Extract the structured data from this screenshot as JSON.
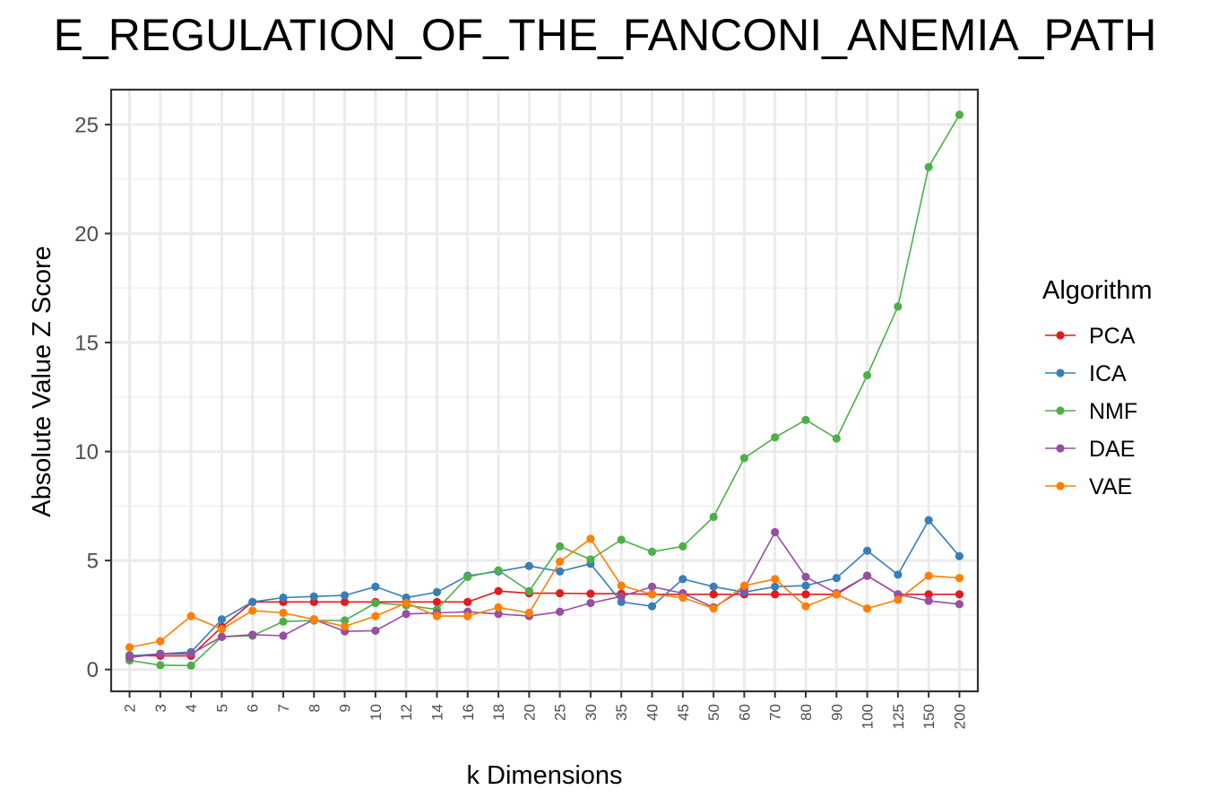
{
  "chart_data": {
    "type": "line",
    "title": "E_REGULATION_OF_THE_FANCONI_ANEMIA_PATH",
    "xlabel": "k Dimensions",
    "ylabel": "Absolute Value Z Score",
    "x_type": "categorical",
    "categories": [
      "2",
      "3",
      "4",
      "5",
      "6",
      "7",
      "8",
      "9",
      "10",
      "12",
      "14",
      "16",
      "18",
      "20",
      "25",
      "30",
      "35",
      "40",
      "45",
      "50",
      "60",
      "70",
      "80",
      "90",
      "100",
      "125",
      "150",
      "200"
    ],
    "ylim": [
      -1,
      26.6
    ],
    "y_ticks": [
      0,
      5,
      10,
      15,
      20,
      25
    ],
    "grid": true,
    "legend": {
      "title": "Algorithm",
      "placement": "right"
    },
    "series": [
      {
        "name": "PCA",
        "color": "#E41A1C",
        "values": [
          0.65,
          0.63,
          0.63,
          1.95,
          3.1,
          3.1,
          3.1,
          3.1,
          3.1,
          3.1,
          3.1,
          3.1,
          3.6,
          3.5,
          3.5,
          3.48,
          3.48,
          3.45,
          3.45,
          3.45,
          3.45,
          3.45,
          3.45,
          3.45,
          4.3,
          3.45,
          3.45,
          3.45
        ]
      },
      {
        "name": "ICA",
        "color": "#377EB8",
        "values": [
          0.62,
          0.72,
          0.8,
          2.3,
          3.1,
          3.3,
          3.35,
          3.4,
          3.8,
          3.3,
          3.55,
          4.3,
          4.5,
          4.75,
          4.5,
          4.85,
          3.1,
          2.9,
          4.15,
          3.8,
          3.55,
          3.8,
          3.85,
          4.2,
          5.45,
          4.35,
          6.85,
          5.2
        ]
      },
      {
        "name": "NMF",
        "color": "#4DAF4A",
        "values": [
          0.42,
          0.2,
          0.18,
          1.5,
          1.55,
          2.2,
          2.25,
          2.25,
          3.05,
          2.95,
          2.75,
          4.25,
          4.55,
          3.6,
          5.65,
          5.05,
          5.95,
          5.4,
          5.65,
          7.0,
          9.7,
          10.65,
          11.45,
          10.6,
          13.5,
          16.65,
          23.05,
          25.45
        ]
      },
      {
        "name": "DAE",
        "color": "#984EA3",
        "values": [
          0.55,
          0.72,
          0.72,
          1.5,
          1.6,
          1.55,
          2.3,
          1.75,
          1.78,
          2.55,
          2.6,
          2.65,
          2.55,
          2.45,
          2.65,
          3.05,
          3.35,
          3.8,
          3.5,
          2.85,
          3.7,
          6.3,
          4.25,
          3.5,
          4.3,
          3.45,
          3.15,
          3.0
        ]
      },
      {
        "name": "VAE",
        "color": "#FF7F00",
        "values": [
          1.02,
          1.3,
          2.45,
          1.85,
          2.7,
          2.6,
          2.3,
          1.98,
          2.45,
          3.05,
          2.45,
          2.45,
          2.85,
          2.6,
          4.95,
          6.0,
          3.85,
          3.45,
          3.3,
          2.8,
          3.85,
          4.15,
          2.9,
          3.45,
          2.8,
          3.2,
          4.3,
          4.2
        ]
      }
    ]
  }
}
